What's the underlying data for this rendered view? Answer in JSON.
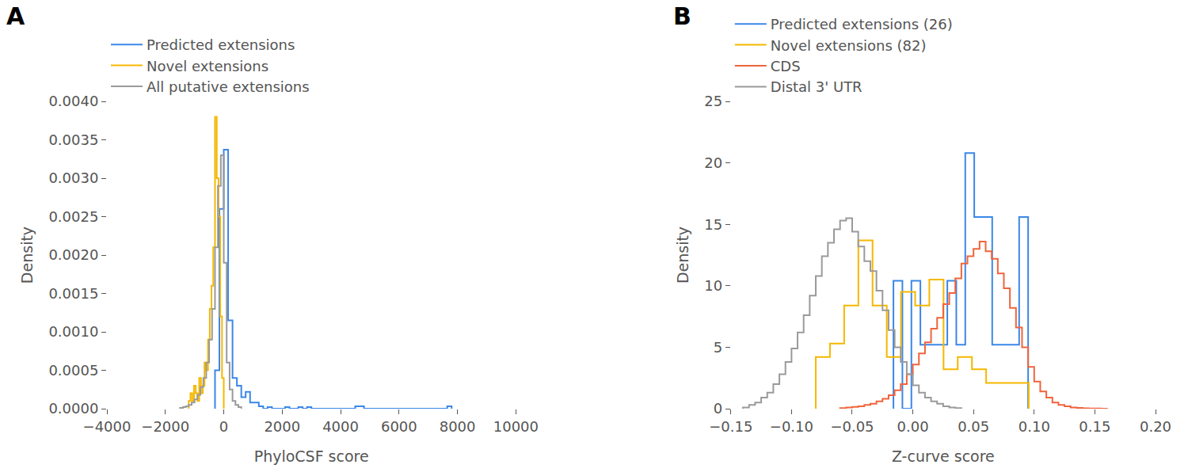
{
  "chart_data": [
    {
      "type": "histogram",
      "title": "A",
      "x_label": "PhyloCSF score",
      "y_label": "Density",
      "xlim": [
        -4000,
        10000
      ],
      "xticks": [
        {
          "value": -4000,
          "label": "−4000"
        },
        {
          "value": -2000,
          "label": "−2000"
        },
        0,
        2000,
        4000,
        6000,
        8000,
        10000
      ],
      "ylim": [
        0,
        0.004
      ],
      "yticks": [
        {
          "value": 0,
          "label": "0.0000"
        },
        {
          "value": 0.0005,
          "label": "0.0005"
        },
        {
          "value": 0.001,
          "label": "0.0010"
        },
        {
          "value": 0.0015,
          "label": "0.0015"
        },
        {
          "value": 0.002,
          "label": "0.0020"
        },
        {
          "value": 0.0025,
          "label": "0.0025"
        },
        {
          "value": 0.003,
          "label": "0.0030"
        },
        {
          "value": 0.0035,
          "label": "0.0035"
        },
        {
          "value": 0.004,
          "label": "0.0040"
        }
      ],
      "grid": false,
      "legend": "top left",
      "series": [
        {
          "name": "Predicted extensions",
          "color": "#3b87e8",
          "bins": [
            -300,
            -150,
            0,
            150,
            300,
            450,
            600,
            750,
            900,
            1050,
            1200,
            1350,
            1500,
            1650,
            1800,
            1950,
            2100,
            2250,
            2400,
            2550,
            2700,
            2850,
            3000,
            3150,
            3300,
            3450,
            3600,
            3750,
            3900,
            4050,
            4200,
            4350,
            4500,
            4650,
            4800,
            4950,
            5100,
            5250,
            5400,
            5550,
            5700,
            5850,
            6000,
            6150,
            6300,
            6450,
            6600,
            6750,
            6900,
            7050,
            7200,
            7350,
            7500,
            7650,
            7800
          ],
          "values": [
            0.0005,
            0.0026,
            0.00337,
            0.00115,
            0.0004,
            0.0003,
            0.00015,
            0.00022,
            8e-05,
            8e-05,
            3e-05,
            0,
            2e-05,
            0,
            0,
            0,
            2e-05,
            0,
            0,
            2e-05,
            0,
            2e-05,
            0,
            0,
            0,
            0,
            0,
            0,
            0,
            0,
            0,
            0,
            3e-05,
            3e-05,
            0,
            0,
            0,
            0,
            0,
            0,
            0,
            0,
            0,
            0,
            0,
            0,
            0,
            0,
            0,
            0,
            0,
            0,
            0,
            3e-05
          ]
        },
        {
          "name": "Novel extensions",
          "color": "#f5b800",
          "bins": [
            -1200,
            -1140,
            -1080,
            -1020,
            -960,
            -900,
            -840,
            -780,
            -720,
            -660,
            -600,
            -540,
            -480,
            -420,
            -360,
            -300,
            -240,
            -180,
            -120,
            -60,
            0
          ],
          "values": [
            0.0001,
            0.0002,
            0.0001,
            0.0003,
            0.0002,
            0.0001,
            0.0004,
            0.0002,
            0.0003,
            0.0006,
            0.0005,
            0.0009,
            0.0013,
            0.0016,
            0.0021,
            0.0038,
            0.003,
            0.0025,
            0.0012,
            0.0004
          ]
        },
        {
          "name": "All putative extensions",
          "color": "#9a9a9a",
          "bins": [
            -1500,
            -1400,
            -1300,
            -1200,
            -1100,
            -1000,
            -900,
            -800,
            -700,
            -600,
            -500,
            -400,
            -300,
            -200,
            -100,
            0,
            100,
            200,
            300,
            400,
            500,
            600
          ],
          "values": [
            1e-05,
            2e-05,
            3e-05,
            5e-05,
            8e-05,
            0.00012,
            0.00018,
            0.00028,
            0.0004,
            0.0006,
            0.0009,
            0.0013,
            0.0021,
            0.0029,
            0.0033,
            0.0019,
            0.0006,
            0.00025,
            0.0001,
            5e-05,
            2e-05
          ]
        }
      ]
    },
    {
      "type": "histogram",
      "title": "B",
      "x_label": "Z-curve score",
      "y_label": "Density",
      "xlim": [
        -0.15,
        0.2
      ],
      "xticks": [
        {
          "value": -0.15,
          "label": "−0.15"
        },
        {
          "value": -0.1,
          "label": "−0.10"
        },
        {
          "value": -0.05,
          "label": "−0.05"
        },
        {
          "value": 0,
          "label": "0.00"
        },
        {
          "value": 0.05,
          "label": "0.05"
        },
        {
          "value": 0.1,
          "label": "0.10"
        },
        {
          "value": 0.15,
          "label": "0.15"
        },
        {
          "value": 0.2,
          "label": "0.20"
        }
      ],
      "ylim": [
        0,
        25
      ],
      "yticks": [
        0,
        5,
        10,
        15,
        20,
        25
      ],
      "grid": false,
      "legend": "top left",
      "series": [
        {
          "name": "Predicted extensions (26)",
          "color": "#3b87e8",
          "bins": [
            -0.016,
            -0.0086,
            -0.0012,
            0.0062,
            0.0136,
            0.021,
            0.0284,
            0.0358,
            0.0432,
            0.0506,
            0.058,
            0.0654,
            0.0728,
            0.0802,
            0.0876,
            0.095
          ],
          "values": [
            10.4,
            0,
            10.4,
            5.2,
            5.2,
            5.2,
            10.4,
            5.2,
            20.8,
            15.6,
            15.6,
            5.2,
            5.2,
            5.2,
            15.6
          ]
        },
        {
          "name": "Novel extensions (82)",
          "color": "#f5b800",
          "bins": [
            -0.08,
            -0.0683,
            -0.0566,
            -0.0449,
            -0.0332,
            -0.0215,
            -0.0098,
            0.0019,
            0.0136,
            0.0253,
            0.037,
            0.0487,
            0.0604,
            0.0721,
            0.0838,
            0.0955
          ],
          "values": [
            4.2,
            5.3,
            8.4,
            13.7,
            8.4,
            4.2,
            9.5,
            8.4,
            10.5,
            3.2,
            4.2,
            3.2,
            2.1,
            2.1,
            2.1
          ]
        },
        {
          "name": "CDS",
          "color": "#f0643c",
          "bins": [
            -0.06,
            -0.055,
            -0.05,
            -0.045,
            -0.04,
            -0.035,
            -0.03,
            -0.025,
            -0.02,
            -0.015,
            -0.01,
            -0.005,
            0,
            0.005,
            0.01,
            0.015,
            0.02,
            0.025,
            0.03,
            0.035,
            0.04,
            0.045,
            0.05,
            0.055,
            0.06,
            0.065,
            0.07,
            0.075,
            0.08,
            0.085,
            0.09,
            0.095,
            0.1,
            0.105,
            0.11,
            0.115,
            0.12,
            0.125,
            0.13,
            0.135,
            0.14,
            0.145,
            0.15,
            0.155,
            0.16
          ],
          "values": [
            0.05,
            0.1,
            0.15,
            0.2,
            0.3,
            0.4,
            0.6,
            0.8,
            1.1,
            1.5,
            2,
            2.8,
            3.6,
            4.5,
            5.4,
            6.5,
            7.4,
            8.5,
            9.4,
            10.6,
            11.8,
            12.4,
            13,
            13.6,
            12.8,
            12.2,
            11,
            9.8,
            8.2,
            6.6,
            5,
            3.4,
            2.2,
            1.4,
            0.9,
            0.5,
            0.3,
            0.2,
            0.1,
            0.06,
            0.03,
            0.02,
            0.01,
            0.005
          ]
        },
        {
          "name": "Distal 3' UTR",
          "color": "#9a9a9a",
          "bins": [
            -0.14,
            -0.135,
            -0.13,
            -0.125,
            -0.12,
            -0.115,
            -0.11,
            -0.105,
            -0.1,
            -0.095,
            -0.09,
            -0.085,
            -0.08,
            -0.075,
            -0.07,
            -0.065,
            -0.06,
            -0.055,
            -0.05,
            -0.045,
            -0.04,
            -0.035,
            -0.03,
            -0.025,
            -0.02,
            -0.015,
            -0.01,
            -0.005,
            0,
            0.005,
            0.01,
            0.015,
            0.02,
            0.025,
            0.03,
            0.035,
            0.04
          ],
          "values": [
            0.1,
            0.3,
            0.5,
            0.9,
            1.3,
            2,
            2.8,
            3.8,
            4.9,
            6.2,
            7.6,
            9.2,
            10.8,
            12.4,
            13.5,
            14.6,
            15.3,
            15.5,
            14.4,
            13.2,
            12,
            11.2,
            9.6,
            8,
            6.4,
            5,
            3.8,
            2.8,
            1.9,
            1.3,
            0.9,
            0.6,
            0.4,
            0.2,
            0.1,
            0.05
          ]
        }
      ]
    }
  ]
}
